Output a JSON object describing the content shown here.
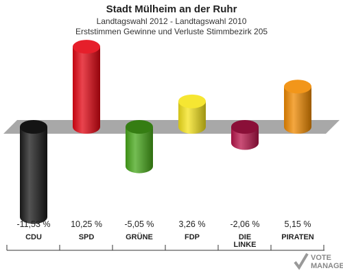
{
  "header": {
    "title": "Stadt Mülheim an der Ruhr",
    "subtitle": "Landtagswahl 2012 - Landtagswahl 2010",
    "description": "Erststimmen Gewinne und Verluste Stimmbezirk 205"
  },
  "chart_data": {
    "type": "bar",
    "title": "Stadt Mülheim an der Ruhr",
    "categories": [
      "CDU",
      "SPD",
      "GRÜNE",
      "FDP",
      "DIE LINKE",
      "PIRATEN"
    ],
    "category_lines": [
      [
        "CDU"
      ],
      [
        "SPD"
      ],
      [
        "GRÜNE"
      ],
      [
        "FDP"
      ],
      [
        "DIE",
        "LINKE"
      ],
      [
        "PIRATEN"
      ]
    ],
    "values": [
      -11.53,
      10.25,
      -5.05,
      3.26,
      -2.06,
      5.15
    ],
    "value_labels": [
      "-11,53 %",
      "10,25 %",
      "-5,05 %",
      "3,26 %",
      "-2,06 %",
      "5,15 %"
    ],
    "colors": [
      "#1a1a1a",
      "#e30613",
      "#46a719",
      "#f5e31b",
      "#b8144a",
      "#f08a00"
    ],
    "grid": false,
    "legend": "none"
  },
  "watermark": {
    "text_line1": "VOTE",
    "text_line2": "MANAGER"
  }
}
